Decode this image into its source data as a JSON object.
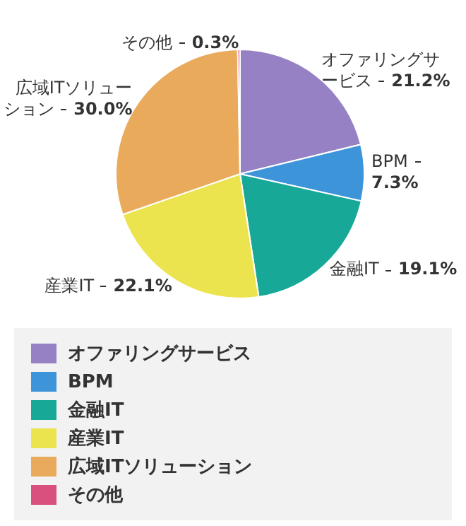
{
  "chart_data": {
    "type": "pie",
    "categories": [
      "オファリングサービス",
      "BPM",
      "金融IT",
      "産業IT",
      "広域ITソリューション",
      "その他"
    ],
    "values": [
      21.2,
      7.3,
      19.1,
      22.1,
      30.0,
      0.3
    ],
    "value_labels": [
      "21.2%",
      "7.3%",
      "19.1%",
      "22.1%",
      "30.0%",
      "0.3%"
    ],
    "colors": [
      "#9581c4",
      "#3d94d9",
      "#17a898",
      "#ece44e",
      "#eaaa5c",
      "#d9507e"
    ],
    "legend": "bottom"
  }
}
